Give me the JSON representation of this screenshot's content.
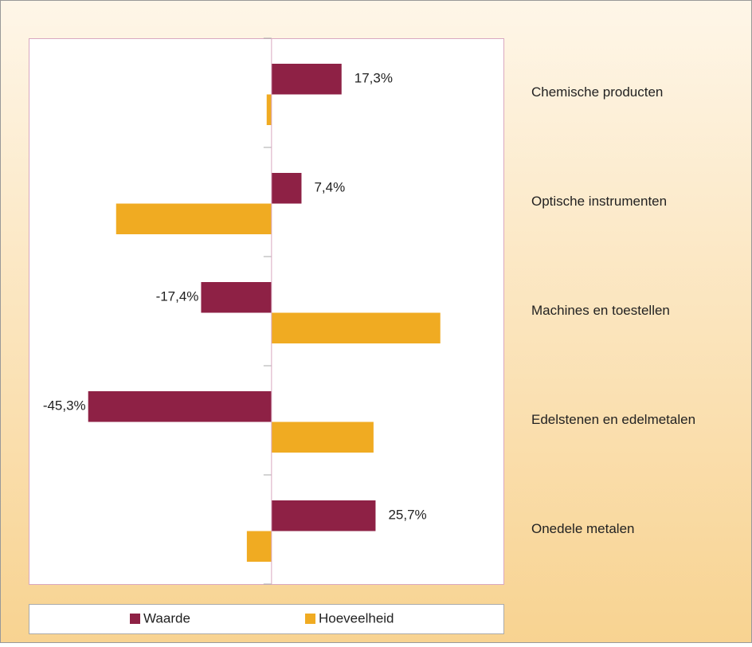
{
  "chart_data": {
    "type": "hbar",
    "categories": [
      "Chemische producten",
      "Optische instrumenten",
      "Machines en toestellen",
      "Edelstenen en edelmetalen",
      "Onedele metalen"
    ],
    "series": [
      {
        "name": "Waarde",
        "color": "#8e2145",
        "values": [
          17.3,
          7.4,
          -17.4,
          -45.3,
          25.7
        ],
        "value_labels": [
          "17,3%",
          "7,4%",
          "-17,4%",
          "-45,3%",
          "25,7%"
        ]
      },
      {
        "name": "Hoeveelheid",
        "color": "#f0ab22",
        "values": [
          -1.2,
          -38.4,
          41.7,
          25.2,
          -6.1
        ]
      }
    ],
    "xlim": [
      -60,
      57.3
    ],
    "legend": "bottom"
  }
}
